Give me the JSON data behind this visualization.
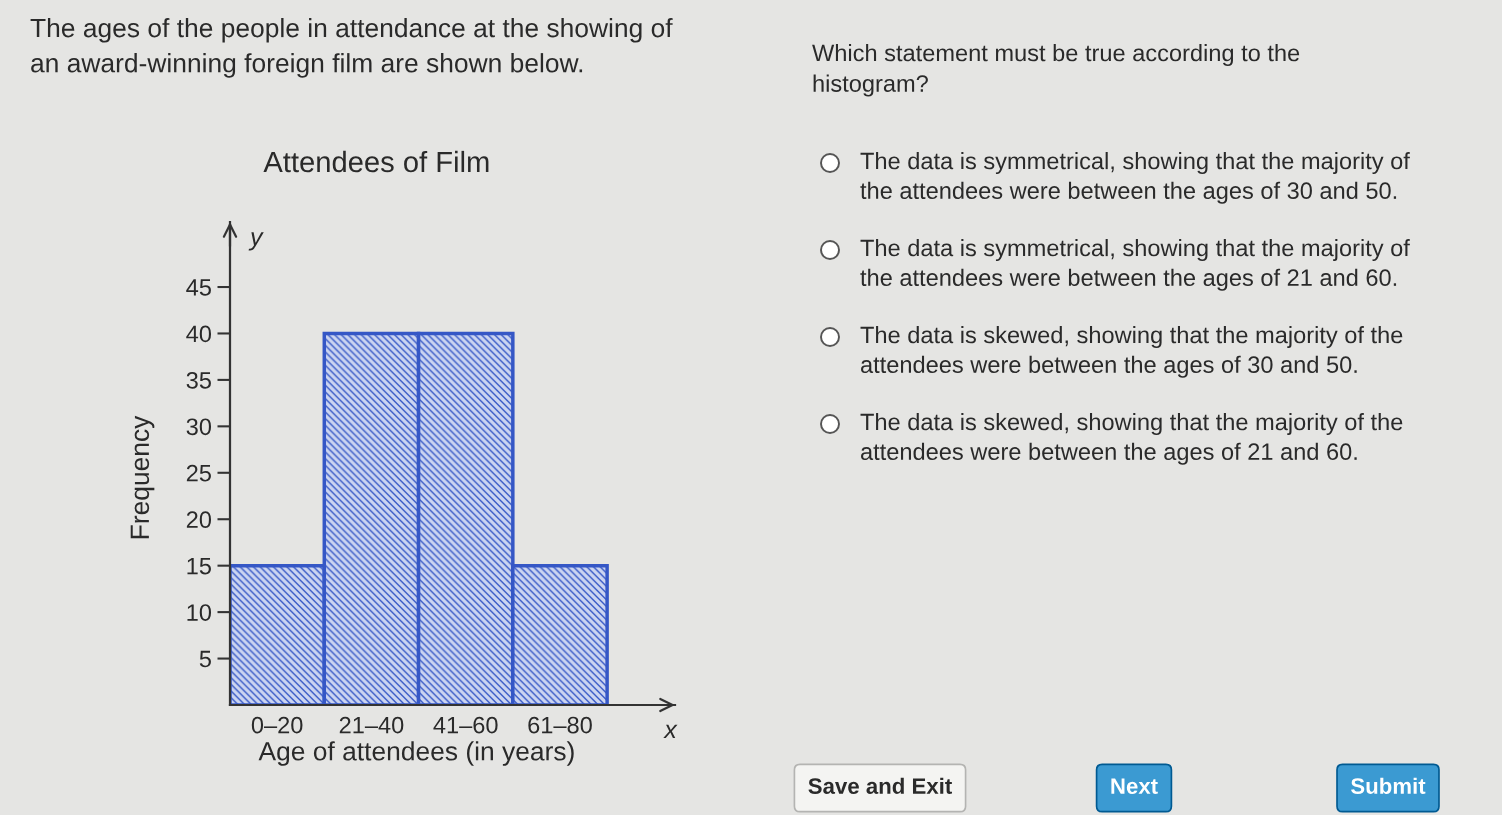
{
  "chart_data": [
    {
      "type": "bar",
      "title": "Attendees of Film",
      "xlabel": "Age of attendees (in years)",
      "ylabel": "Frequency",
      "annotations": [
        "The ages of the people in attendance at the showing of an award-winning foreign film are shown below.",
        "y",
        "x"
      ],
      "categories": [
        "0–20",
        "21–40",
        "41–60",
        "61–80"
      ],
      "values": [
        15,
        40,
        40,
        15
      ],
      "color": "#3557c6",
      "ylim": [
        0,
        52
      ],
      "yticks": [
        5,
        10,
        15,
        20,
        25,
        30,
        35,
        40,
        45
      ]
    },
    {
      "type": "other",
      "title": "Which statement must be true according to the histogram?",
      "annotations": [
        "The data is symmetrical, showing that the majority of the attendees were between the ages of 30 and 50.",
        "The data is symmetrical, showing that the majority of the attendees were between the ages of 21 and 60.",
        "The data is skewed, showing that the majority of the attendees were between the ages of 30 and 50.",
        "The data is skewed, showing that the majority of the attendees were between the ages of 21 and 60."
      ]
    },
    {
      "type": "other",
      "annotations": [
        "Save and Exit",
        "Next",
        "Submit"
      ],
      "colors": [
        "#f4f4f2",
        "#3b9ad2",
        "#3b9ad2"
      ]
    }
  ]
}
